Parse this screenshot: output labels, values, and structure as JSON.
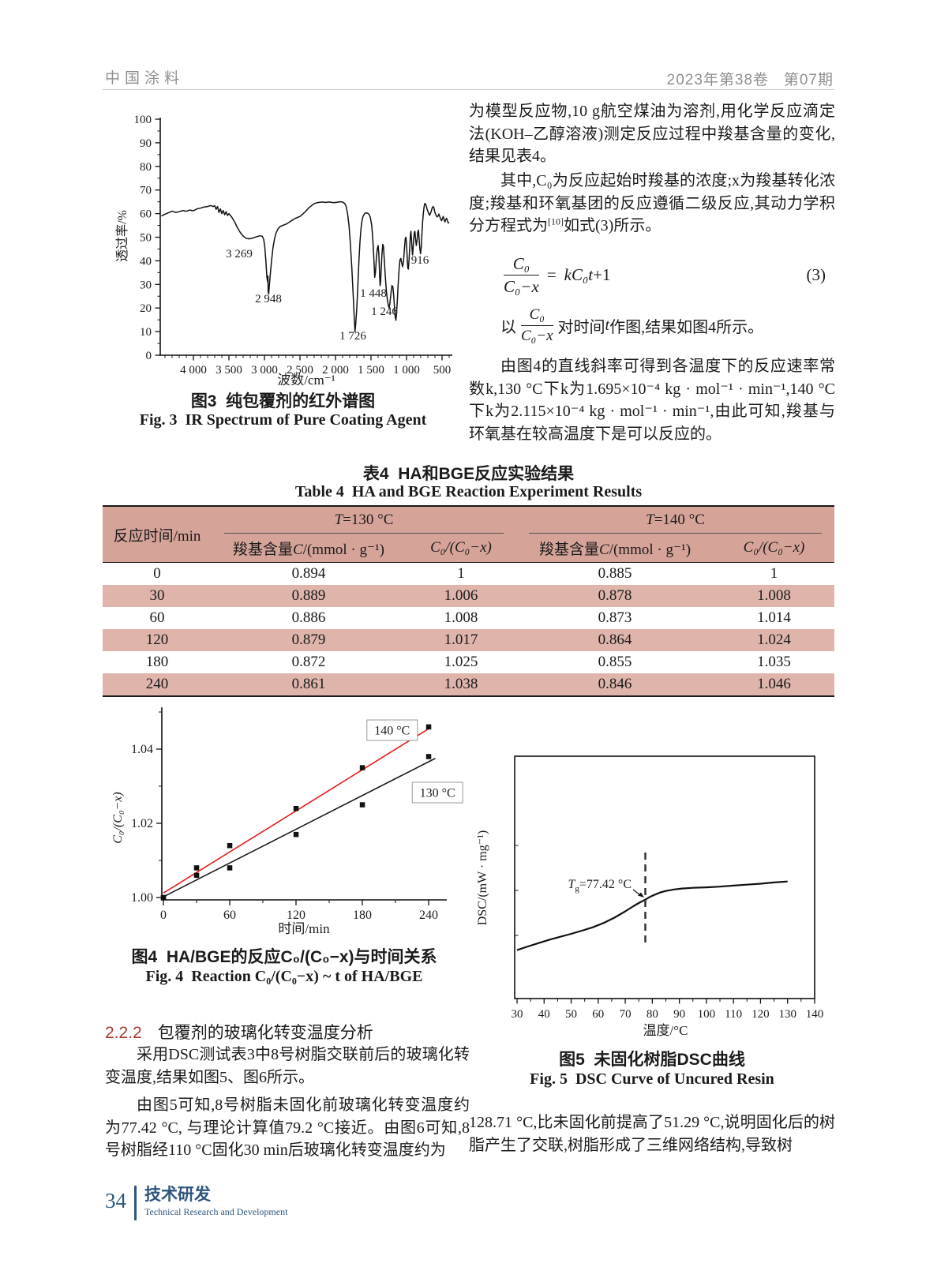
{
  "header": {
    "journal": "中国涂料",
    "issue": "2023年第38卷   第07期"
  },
  "right_col": {
    "p1": "为模型反应物,10 g航空煤油为溶剂,用化学反应滴定法(KOH–乙醇溶液)测定反应过程中羧基含量的变化,结果见表4。",
    "p2_pre": "其中,C₀为反应起始时羧基的浓度;x为羧基转化浓度;羧基和环氧基团的反应遵循二级反应,其动力学积分方程式为",
    "p2_ref": "[10]",
    "p2_post": "如式(3)所示。",
    "p3_pre": "以",
    "p3_mid": "对时间",
    "p3_var": "t",
    "p3_post": "作图,结果如图4所示。",
    "p4": "由图4的直线斜率可得到各温度下的反应速率常数k,130 °C下k为1.695×10⁻⁴ kg · mol⁻¹ · min⁻¹,140 °C下k为2.115×10⁻⁴ kg · mol⁻¹ · min⁻¹,由此可知,羧基与环氧基在较高温度下是可以反应的。",
    "p7": "128.71 °C,比未固化前提高了51.29 °C,说明固化后的树脂产生了交联,树脂形成了三维网络结构,导致树"
  },
  "equation": {
    "num": "C₀",
    "den": "C₀−x",
    "equals": "=",
    "rhs_italic": "kC₀t",
    "rhs_plain": "+1",
    "tag": "(3)"
  },
  "fig3": {
    "caption_cn": "图3  纯包覆剂的红外谱图",
    "caption_en": "Fig. 3  IR Spectrum of Pure Coating Agent",
    "chart_data": {
      "type": "line",
      "xlabel": "波数/cm⁻¹",
      "ylabel": "透过率/%",
      "xlim": [
        4500,
        360
      ],
      "ylim": [
        0,
        100
      ],
      "x_ticks": [
        "4 000",
        "3 500",
        "3 000",
        "2 500",
        "2 000",
        "1 500",
        "1 000",
        "500"
      ],
      "x_tick_values": [
        4000,
        3500,
        3000,
        2500,
        2000,
        1500,
        1000,
        500
      ],
      "y_ticks": [
        "0",
        "10",
        "20",
        "30",
        "40",
        "50",
        "60",
        "70",
        "80",
        "90",
        "100"
      ],
      "peaks": [
        {
          "label": "3 269",
          "pos": [
            3356,
            41.5
          ]
        },
        {
          "label": "2 948",
          "pos": [
            2945,
            22.4
          ]
        },
        {
          "label": "1 726",
          "pos": [
            1756,
            6.7
          ]
        },
        {
          "label": "1 448",
          "pos": [
            1467,
            24.7
          ]
        },
        {
          "label": "1 246",
          "pos": [
            1311,
            17.1
          ]
        },
        {
          "label": "916",
          "pos": [
            811,
            38.8
          ]
        }
      ],
      "trace": [
        [
          4450,
          59
        ],
        [
          4380,
          60
        ],
        [
          4300,
          61
        ],
        [
          4250,
          60.5
        ],
        [
          4200,
          60.8
        ],
        [
          4150,
          61.3
        ],
        [
          4100,
          61
        ],
        [
          4050,
          61.5
        ],
        [
          4000,
          61.2
        ],
        [
          3950,
          62
        ],
        [
          3900,
          62.3
        ],
        [
          3850,
          62.8
        ],
        [
          3800,
          63
        ],
        [
          3760,
          63.4
        ],
        [
          3720,
          63
        ],
        [
          3700,
          63.3
        ],
        [
          3680,
          61.8
        ],
        [
          3660,
          63
        ],
        [
          3640,
          60.5
        ],
        [
          3620,
          62
        ],
        [
          3600,
          60
        ],
        [
          3580,
          61.3
        ],
        [
          3560,
          59.5
        ],
        [
          3540,
          60.8
        ],
        [
          3520,
          59.2
        ],
        [
          3500,
          60
        ],
        [
          3460,
          58.5
        ],
        [
          3420,
          56.5
        ],
        [
          3380,
          54
        ],
        [
          3340,
          52
        ],
        [
          3300,
          50.5
        ],
        [
          3260,
          49.6
        ],
        [
          3220,
          49.3
        ],
        [
          3180,
          49.5
        ],
        [
          3140,
          49.9
        ],
        [
          3100,
          50.3
        ],
        [
          3060,
          50.6
        ],
        [
          3030,
          50.4
        ],
        [
          3010,
          49
        ],
        [
          2995,
          46
        ],
        [
          2980,
          40
        ],
        [
          2965,
          33
        ],
        [
          2955,
          31
        ],
        [
          2950,
          33.5
        ],
        [
          2948,
          27
        ],
        [
          2940,
          26
        ],
        [
          2930,
          30
        ],
        [
          2915,
          35
        ],
        [
          2900,
          40
        ],
        [
          2880,
          45.5
        ],
        [
          2860,
          49
        ],
        [
          2840,
          51.5
        ],
        [
          2810,
          53.5
        ],
        [
          2780,
          54.5
        ],
        [
          2740,
          55
        ],
        [
          2700,
          55.5
        ],
        [
          2660,
          56.2
        ],
        [
          2620,
          57
        ],
        [
          2580,
          57.8
        ],
        [
          2540,
          58.3
        ],
        [
          2500,
          58.8
        ],
        [
          2460,
          59.8
        ],
        [
          2420,
          61
        ],
        [
          2380,
          62.3
        ],
        [
          2340,
          63.3
        ],
        [
          2300,
          64.2
        ],
        [
          2260,
          64.6
        ],
        [
          2220,
          64.8
        ],
        [
          2180,
          64.9
        ],
        [
          2140,
          64.7
        ],
        [
          2100,
          64.9
        ],
        [
          2060,
          64.8
        ],
        [
          2020,
          64.6
        ],
        [
          1980,
          64.8
        ],
        [
          1940,
          65
        ],
        [
          1900,
          64.9
        ],
        [
          1870,
          64.3
        ],
        [
          1850,
          63
        ],
        [
          1830,
          60
        ],
        [
          1810,
          55
        ],
        [
          1790,
          47
        ],
        [
          1770,
          37
        ],
        [
          1750,
          25
        ],
        [
          1735,
          15
        ],
        [
          1726,
          10
        ],
        [
          1715,
          13
        ],
        [
          1700,
          20
        ],
        [
          1685,
          30
        ],
        [
          1670,
          40
        ],
        [
          1655,
          48
        ],
        [
          1640,
          54
        ],
        [
          1625,
          57.5
        ],
        [
          1610,
          59
        ],
        [
          1590,
          60
        ],
        [
          1570,
          60.3
        ],
        [
          1550,
          60.2
        ],
        [
          1530,
          59.8
        ],
        [
          1510,
          58.5
        ],
        [
          1490,
          55
        ],
        [
          1475,
          49
        ],
        [
          1460,
          41
        ],
        [
          1448,
          33
        ],
        [
          1438,
          35
        ],
        [
          1425,
          41
        ],
        [
          1412,
          45
        ],
        [
          1400,
          46.5
        ],
        [
          1390,
          43
        ],
        [
          1380,
          35
        ],
        [
          1372,
          29.5
        ],
        [
          1365,
          31
        ],
        [
          1355,
          37
        ],
        [
          1345,
          43
        ],
        [
          1335,
          47
        ],
        [
          1325,
          46
        ],
        [
          1312,
          40
        ],
        [
          1300,
          34
        ],
        [
          1285,
          27.5
        ],
        [
          1270,
          23.5
        ],
        [
          1255,
          21
        ],
        [
          1246,
          20
        ],
        [
          1235,
          22
        ],
        [
          1220,
          26
        ],
        [
          1205,
          29.5
        ],
        [
          1192,
          29
        ],
        [
          1180,
          25
        ],
        [
          1168,
          19.5
        ],
        [
          1158,
          16
        ],
        [
          1150,
          14.8
        ],
        [
          1142,
          17
        ],
        [
          1130,
          23
        ],
        [
          1118,
          30
        ],
        [
          1105,
          36.5
        ],
        [
          1092,
          40.5
        ],
        [
          1080,
          41
        ],
        [
          1068,
          39
        ],
        [
          1055,
          37.5
        ],
        [
          1042,
          40
        ],
        [
          1030,
          45
        ],
        [
          1018,
          49.5
        ],
        [
          1008,
          50
        ],
        [
          1000,
          47
        ],
        [
          990,
          41
        ],
        [
          982,
          37
        ],
        [
          975,
          36.5
        ],
        [
          965,
          40
        ],
        [
          955,
          46
        ],
        [
          945,
          51
        ],
        [
          938,
          52.5
        ],
        [
          930,
          49
        ],
        [
          922,
          45
        ],
        [
          916,
          42.5
        ],
        [
          908,
          45
        ],
        [
          900,
          49
        ],
        [
          890,
          52
        ],
        [
          882,
          52.5
        ],
        [
          872,
          49
        ],
        [
          862,
          46.5
        ],
        [
          852,
          48.5
        ],
        [
          842,
          52
        ],
        [
          832,
          53
        ],
        [
          822,
          49
        ],
        [
          812,
          45
        ],
        [
          802,
          43
        ],
        [
          792,
          46
        ],
        [
          782,
          52
        ],
        [
          772,
          57
        ],
        [
          762,
          60.5
        ],
        [
          752,
          63
        ],
        [
          742,
          64.3
        ],
        [
          732,
          64
        ],
        [
          722,
          63.2
        ],
        [
          712,
          62
        ],
        [
          700,
          61
        ],
        [
          688,
          60
        ],
        [
          676,
          59.3
        ],
        [
          664,
          60
        ],
        [
          652,
          61
        ],
        [
          640,
          62.3
        ],
        [
          628,
          63
        ],
        [
          616,
          62.5
        ],
        [
          604,
          61
        ],
        [
          592,
          59.8
        ],
        [
          580,
          59
        ],
        [
          568,
          58.6
        ],
        [
          556,
          59
        ],
        [
          544,
          59.8
        ],
        [
          532,
          58.8
        ],
        [
          520,
          57.8
        ],
        [
          508,
          57
        ],
        [
          496,
          57.8
        ],
        [
          484,
          58.8
        ],
        [
          472,
          57.5
        ],
        [
          460,
          56.5
        ],
        [
          448,
          57.5
        ],
        [
          436,
          58
        ],
        [
          424,
          57
        ],
        [
          412,
          56
        ],
        [
          400,
          56.3
        ]
      ]
    }
  },
  "table": {
    "title_cn": "表4  HA和BGE反应实验结果",
    "title_en": "Table 4  HA and BGE Reaction Experiment Results",
    "col_time": "反应时间/min",
    "t_sym": "T",
    "t130_val": "=130 °C",
    "t140_val": "=140 °C",
    "h_c_prefix": "羧基含量",
    "h_c_sym": "C",
    "h_c_unit": "/(mmol · g⁻¹)",
    "h_ratio": "C₀/(C₀−x)",
    "rows": [
      [
        "0",
        "0.894",
        "1",
        "0.885",
        "1"
      ],
      [
        "30",
        "0.889",
        "1.006",
        "0.878",
        "1.008"
      ],
      [
        "60",
        "0.886",
        "1.008",
        "0.873",
        "1.014"
      ],
      [
        "120",
        "0.879",
        "1.017",
        "0.864",
        "1.024"
      ],
      [
        "180",
        "0.872",
        "1.025",
        "0.855",
        "1.035"
      ],
      [
        "240",
        "0.861",
        "1.038",
        "0.846",
        "1.046"
      ]
    ]
  },
  "fig4": {
    "caption_cn": "图4  HA/BGE的反应C₀/(C₀−x)与时间关系",
    "caption_en": "Fig. 4  Reaction C₀/(C₀−x) ~ t of HA/BGE",
    "chart_data": {
      "type": "scatter",
      "xlabel": "时间/min",
      "ylabel": "C₀/(C₀−x)",
      "x": [
        0,
        30,
        60,
        120,
        180,
        240
      ],
      "x_ticks": [
        0,
        60,
        120,
        180,
        240
      ],
      "y_ticks": [
        "1.00",
        "1.02",
        "1.04"
      ],
      "y_tick_values": [
        1.0,
        1.02,
        1.04
      ],
      "ylim": [
        1.0,
        1.051
      ],
      "series": [
        {
          "name": "140 °C",
          "color": "#e31c1c",
          "values": [
            1.0,
            1.008,
            1.014,
            1.024,
            1.035,
            1.046
          ],
          "fit": [
            [
              0,
              1.0012
            ],
            [
              240,
              1.0455
            ]
          ]
        },
        {
          "name": "130 °C",
          "color": "#1b1b1b",
          "values": [
            1.0,
            1.006,
            1.008,
            1.017,
            1.025,
            1.038
          ],
          "fit": [
            [
              0,
              1.0002
            ],
            [
              246,
              1.0375
            ]
          ]
        }
      ],
      "labels": [
        {
          "text": "140 °C",
          "pos": [
            207,
            1.0451
          ]
        },
        {
          "text": "130 °C",
          "pos": [
            248,
            1.0283
          ]
        }
      ]
    }
  },
  "section": {
    "num": "2.2.2",
    "title": "包覆剂的玻璃化转变温度分析"
  },
  "left_col": {
    "p5": "采用DSC测试表3中8号树脂交联前后的玻璃化转变温度,结果如图5、图6所示。",
    "p6": "由图5可知,8号树脂未固化前玻璃化转变温度约为77.42 °C, 与理论计算值79.2 °C接近。由图6可知,8号树脂经110 °C固化30 min后玻璃化转变温度约为"
  },
  "fig5": {
    "caption_cn": "图5  未固化树脂DSC曲线",
    "caption_en": "Fig. 5  DSC Curve of Uncured Resin",
    "chart_data": {
      "type": "line",
      "xlabel": "温度/°C",
      "ylabel": "DSC/(mW · mg⁻¹)",
      "x_ticks": [
        30,
        40,
        50,
        60,
        70,
        80,
        90,
        100,
        110,
        120,
        130,
        140
      ],
      "annotation": {
        "sym": "T",
        "sub": "g",
        "rest": "=77.42 °C",
        "x": 77.42
      },
      "trace": [
        [
          30,
          0.2
        ],
        [
          34,
          0.215
        ],
        [
          38,
          0.229
        ],
        [
          42,
          0.243
        ],
        [
          46,
          0.255
        ],
        [
          50,
          0.267
        ],
        [
          54,
          0.28
        ],
        [
          58,
          0.294
        ],
        [
          62,
          0.312
        ],
        [
          66,
          0.334
        ],
        [
          70,
          0.36
        ],
        [
          73,
          0.381
        ],
        [
          75,
          0.394
        ],
        [
          77,
          0.406
        ],
        [
          79,
          0.419
        ],
        [
          81,
          0.429
        ],
        [
          83,
          0.438
        ],
        [
          85,
          0.444
        ],
        [
          88,
          0.45
        ],
        [
          91,
          0.454
        ],
        [
          95,
          0.457
        ],
        [
          100,
          0.459
        ],
        [
          105,
          0.462
        ],
        [
          110,
          0.466
        ],
        [
          115,
          0.47
        ],
        [
          120,
          0.474
        ],
        [
          125,
          0.479
        ],
        [
          130,
          0.483
        ]
      ]
    }
  },
  "footer": {
    "page": "34",
    "label_cn": "技术研发",
    "label_en": "Technical Research and Development"
  }
}
